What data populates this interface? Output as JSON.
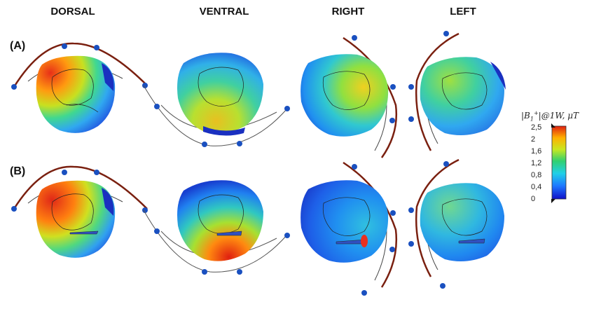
{
  "columns": [
    "DORSAL",
    "VENTRAL",
    "RIGHT",
    "LEFT"
  ],
  "rows": [
    "(A)",
    "(B)"
  ],
  "colorbar": {
    "title_main": "|B",
    "title_sub": "1",
    "title_sup": "+",
    "title_rest": "|@1W, μT",
    "ticks": [
      "2,5",
      "2",
      "1,6",
      "1,2",
      "0,8",
      "0,4",
      "0"
    ],
    "colors": [
      "#1010c8",
      "#1e78ff",
      "#20d0e8",
      "#30d070",
      "#c8e820",
      "#ffb000",
      "#e02010"
    ]
  }
}
